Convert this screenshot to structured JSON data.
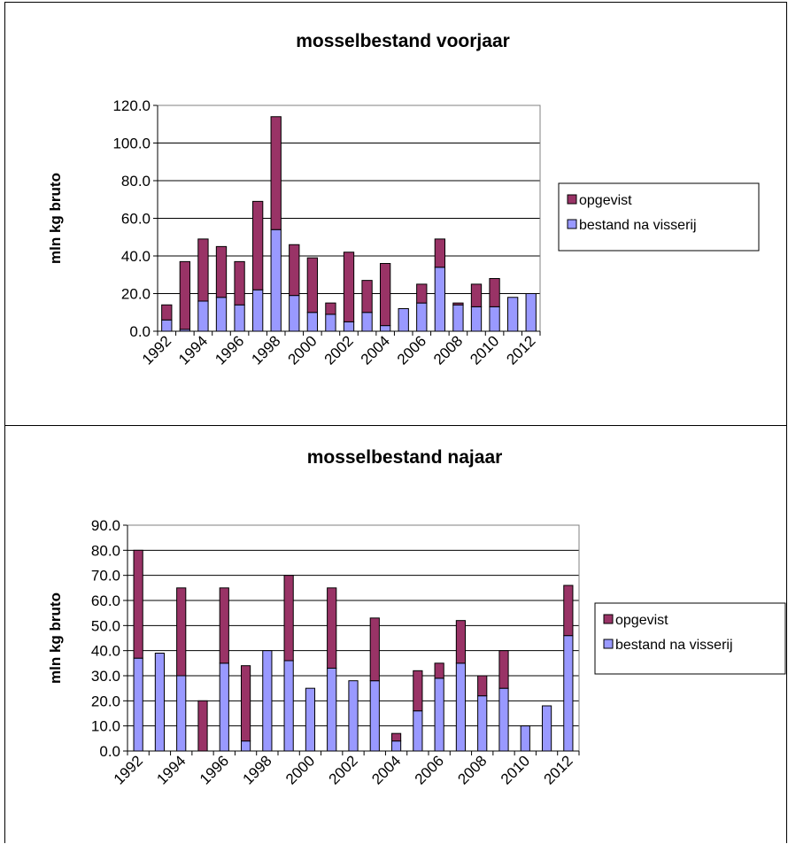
{
  "colors": {
    "opgevist": "#993366",
    "bestand": "#9999FF",
    "gridline": "#000000",
    "plot_border": "#808080"
  },
  "chart_data": [
    {
      "type": "bar",
      "stacked": true,
      "title": "mosselbestand voorjaar",
      "xlabel": "",
      "ylabel": "mln kg bruto",
      "ylim": [
        0,
        120
      ],
      "yticks": [
        "0.0",
        "20.0",
        "40.0",
        "60.0",
        "80.0",
        "100.0",
        "120.0"
      ],
      "xtick_labels": [
        "1992",
        "1994",
        "1996",
        "1998",
        "2000",
        "2002",
        "2004",
        "2006",
        "2008",
        "2010",
        "2012"
      ],
      "grid": true,
      "legend_position": "right",
      "categories": [
        "1992",
        "1993",
        "1994",
        "1995",
        "1996",
        "1997",
        "1998",
        "1999",
        "2000",
        "2001",
        "2002",
        "2003",
        "2004",
        "2005",
        "2006",
        "2007",
        "2008",
        "2009",
        "2010",
        "2011",
        "2012"
      ],
      "series": [
        {
          "name": "bestand na visserij",
          "values": [
            6,
            1,
            16,
            18,
            14,
            22,
            54,
            19,
            10,
            9,
            5,
            10,
            3,
            12,
            15,
            34,
            14,
            13,
            13,
            18,
            20
          ]
        },
        {
          "name": "opgevist",
          "values": [
            8,
            36,
            33,
            27,
            23,
            47,
            60,
            27,
            29,
            6,
            37,
            17,
            33,
            0,
            10,
            15,
            1,
            12,
            15,
            0,
            0
          ]
        }
      ]
    },
    {
      "type": "bar",
      "stacked": true,
      "title": "mosselbestand najaar",
      "xlabel": "",
      "ylabel": "mln kg bruto",
      "ylim": [
        0,
        90
      ],
      "yticks": [
        "0.0",
        "10.0",
        "20.0",
        "30.0",
        "40.0",
        "50.0",
        "60.0",
        "70.0",
        "80.0",
        "90.0"
      ],
      "xtick_labels": [
        "1992",
        "1994",
        "1996",
        "1998",
        "2000",
        "2002",
        "2004",
        "2006",
        "2008",
        "2010",
        "2012"
      ],
      "grid": true,
      "legend_position": "right",
      "categories": [
        "1992",
        "1993",
        "1994",
        "1995",
        "1996",
        "1997",
        "1998",
        "1999",
        "2000",
        "2001",
        "2002",
        "2003",
        "2004",
        "2005",
        "2006",
        "2007",
        "2008",
        "2009",
        "2010",
        "2011",
        "2012"
      ],
      "series": [
        {
          "name": "bestand na visserij",
          "values": [
            37,
            39,
            30,
            0,
            35,
            4,
            40,
            36,
            25,
            33,
            28,
            28,
            4,
            16,
            29,
            35,
            22,
            25,
            10,
            18,
            46
          ]
        },
        {
          "name": "opgevist",
          "values": [
            43,
            0,
            35,
            20,
            30,
            30,
            0,
            34,
            0,
            32,
            0,
            25,
            3,
            16,
            6,
            17,
            8,
            15,
            0,
            0,
            20
          ]
        }
      ]
    }
  ]
}
